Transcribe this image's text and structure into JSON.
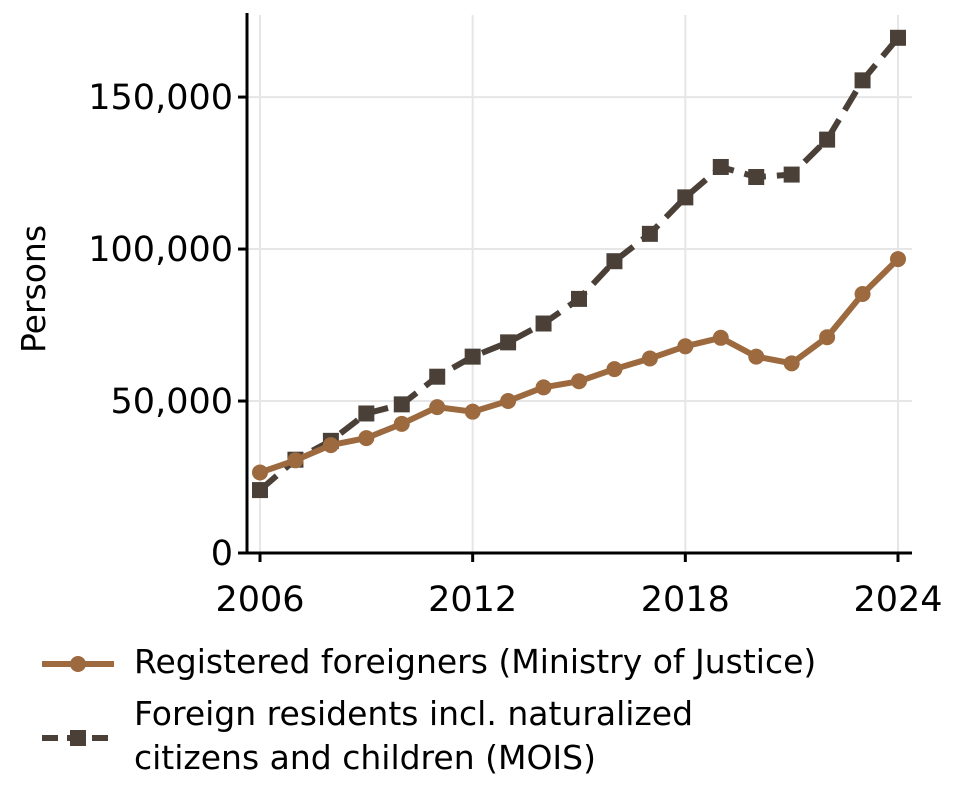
{
  "chart_data": {
    "type": "line",
    "x": [
      2006,
      2007,
      2008,
      2009,
      2010,
      2011,
      2012,
      2013,
      2014,
      2015,
      2016,
      2017,
      2018,
      2019,
      2020,
      2021,
      2022,
      2023,
      2024
    ],
    "xticks": [
      "2006",
      "2012",
      "2018",
      "2024"
    ],
    "yticks": [
      "0",
      "50,000",
      "100,000",
      "150,000"
    ],
    "xlim": [
      2006,
      2024
    ],
    "ylim": [
      0,
      177000
    ],
    "xlabel": "",
    "ylabel": "Persons",
    "grid": true,
    "legend_position": "bottom",
    "series": [
      {
        "name": "Registered foreigners (Ministry of Justice)",
        "color": "#9c6a3e",
        "marker": "circle",
        "line": "solid",
        "values": [
          26500,
          30500,
          35500,
          37800,
          42500,
          48000,
          46500,
          50000,
          54500,
          56500,
          60500,
          64000,
          68000,
          70800,
          64600,
          62400,
          71000,
          85200,
          96700
        ]
      },
      {
        "name": "Foreign residents incl. naturalized citizens and children (MOIS)",
        "color": "#4a4038",
        "marker": "square",
        "line": "dashed",
        "values": [
          20700,
          30700,
          36900,
          45900,
          48900,
          58000,
          64600,
          69300,
          75500,
          83600,
          96000,
          105000,
          117000,
          127000,
          123700,
          124500,
          136000,
          155500,
          169500
        ]
      }
    ]
  },
  "legend": {
    "items": [
      {
        "label": "Registered foreigners (Ministry of Justice)"
      },
      {
        "label_line1": "Foreign residents incl. naturalized",
        "label_line2": "citizens and children (MOIS)"
      }
    ]
  }
}
